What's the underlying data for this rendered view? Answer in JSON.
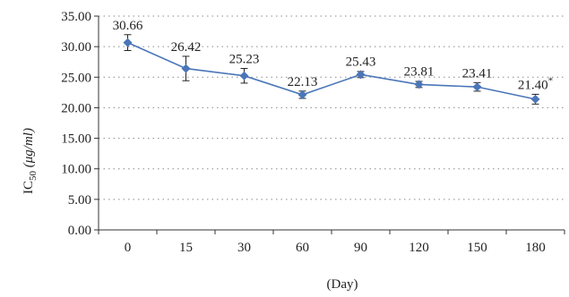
{
  "chart_data": {
    "type": "line",
    "x": [
      "0",
      "15",
      "30",
      "60",
      "90",
      "120",
      "150",
      "180"
    ],
    "xlabel": "(Day)",
    "ylabel": "IC",
    "ylabel_sub": "50",
    "ylabel_unit": " (μg/ml)",
    "ylim": [
      0,
      35
    ],
    "yticks": [
      "0.00",
      "5.00",
      "10.00",
      "15.00",
      "20.00",
      "25.00",
      "30.00",
      "35.00"
    ],
    "grid": "horizontal-dotted",
    "series": [
      {
        "values": [
          30.66,
          26.42,
          25.23,
          22.13,
          25.43,
          23.81,
          23.41,
          21.4
        ],
        "error": [
          1.3,
          2.0,
          1.2,
          0.6,
          0.5,
          0.5,
          0.7,
          0.8
        ],
        "labels": [
          "30.66",
          "26.42",
          "25.23",
          "22.13",
          "25.43",
          "23.81",
          "23.41",
          "21.40"
        ],
        "label_suffix": [
          "",
          "",
          "",
          "",
          "",
          "",
          "",
          "*"
        ],
        "color": "#4a76b8"
      }
    ]
  }
}
